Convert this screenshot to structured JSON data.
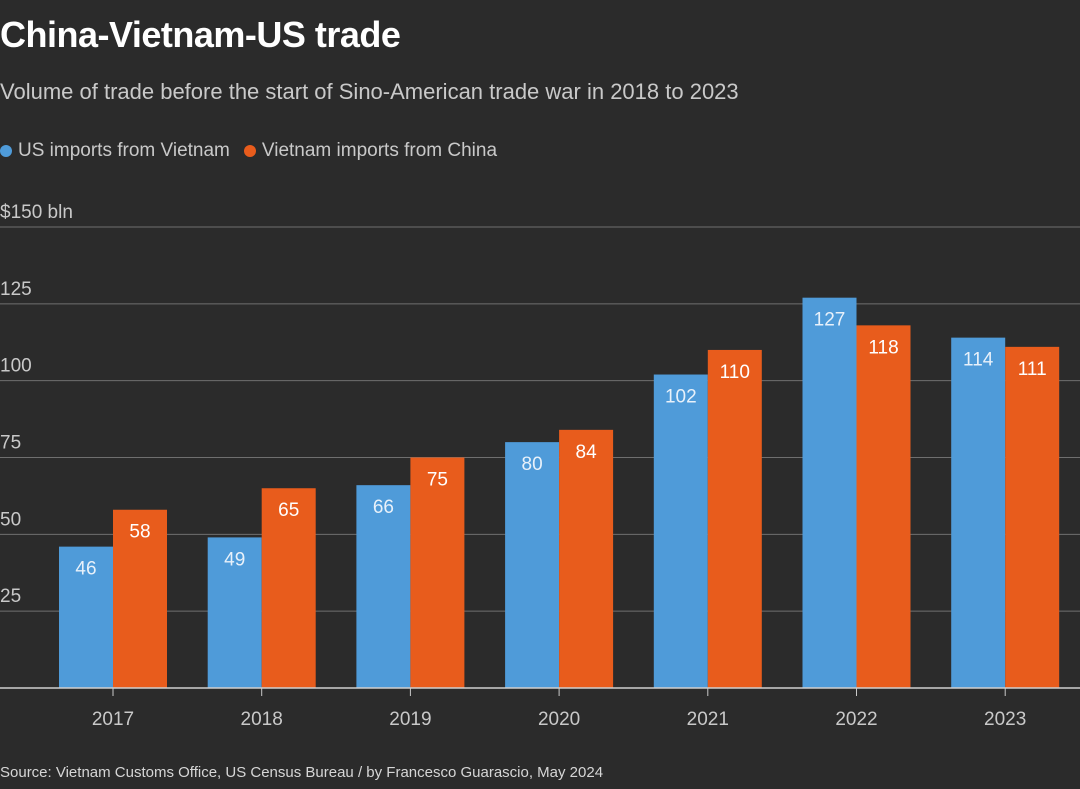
{
  "header": {
    "title": "China-Vietnam-US trade",
    "subtitle": "Volume of trade before the start of Sino-American trade war in 2018 to 2023"
  },
  "footer": {
    "source": "Source: Vietnam Customs Office, US Census Bureau / by Francesco Guarascio, May 2024"
  },
  "colors": {
    "us_imports": "#4f9bd9",
    "vietnam_imports": "#e85c1c",
    "background": "#2b2b2b",
    "gridline": "#7a7a7a"
  },
  "chart_data": {
    "type": "bar",
    "title": "China-Vietnam-US trade",
    "subtitle": "Volume of trade before the start of Sino-American trade war in 2018 to 2023",
    "categories": [
      "2017",
      "2018",
      "2019",
      "2020",
      "2021",
      "2022",
      "2023"
    ],
    "series": [
      {
        "name": "US imports from Vietnam",
        "color": "#4f9bd9",
        "values": [
          46,
          49,
          66,
          80,
          102,
          127,
          114
        ]
      },
      {
        "name": "Vietnam imports from China",
        "color": "#e85c1c",
        "values": [
          58,
          65,
          75,
          84,
          110,
          118,
          111
        ]
      }
    ],
    "yticks": [
      {
        "value": 25,
        "label": "25"
      },
      {
        "value": 50,
        "label": "50"
      },
      {
        "value": 75,
        "label": "75"
      },
      {
        "value": 100,
        "label": "100"
      },
      {
        "value": 125,
        "label": "125"
      },
      {
        "value": 150,
        "label": "$150 bln"
      }
    ],
    "ylim": [
      0,
      150
    ],
    "xlabel": "",
    "ylabel": "",
    "grid": true,
    "legend_position": "top-left",
    "data_labels": true
  }
}
